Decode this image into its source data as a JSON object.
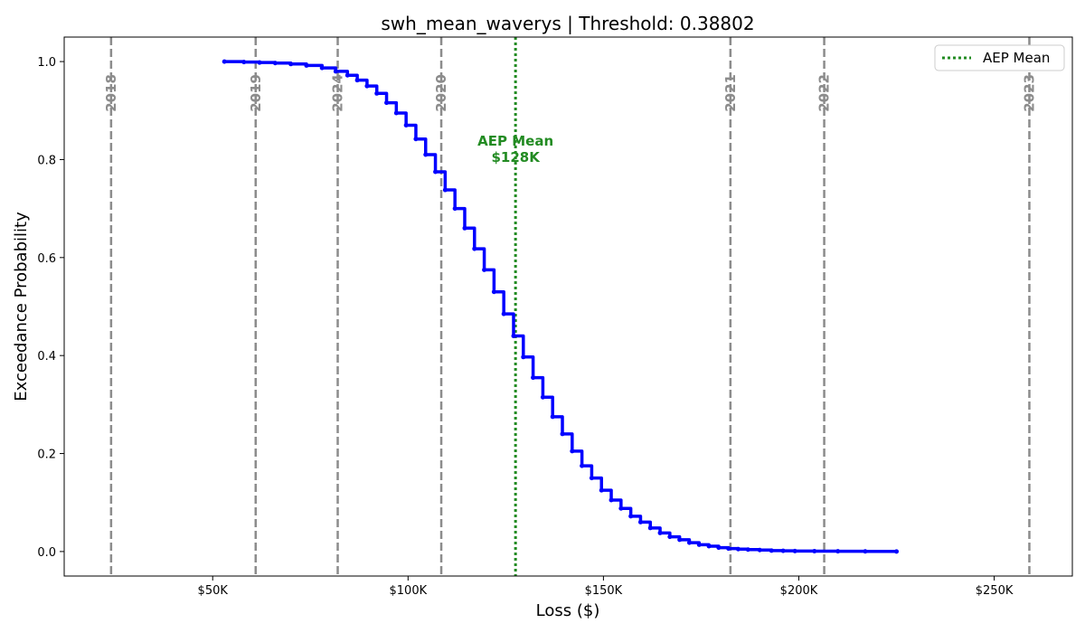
{
  "chart_data": {
    "type": "line",
    "title": "swh_mean_waverys | Threshold: 0.38802",
    "xlabel": "Loss ($)",
    "ylabel": "Exceedance Probability",
    "xlim": [
      12000,
      270000
    ],
    "ylim": [
      -0.05,
      1.05
    ],
    "x_ticks": [
      {
        "value": 50000,
        "label": "$50K"
      },
      {
        "value": 100000,
        "label": "$100K"
      },
      {
        "value": 150000,
        "label": "$150K"
      },
      {
        "value": 200000,
        "label": "$200K"
      },
      {
        "value": 250000,
        "label": "$250K"
      }
    ],
    "y_ticks": [
      {
        "value": 0.0,
        "label": "0.0"
      },
      {
        "value": 0.2,
        "label": "0.2"
      },
      {
        "value": 0.4,
        "label": "0.4"
      },
      {
        "value": 0.6,
        "label": "0.6"
      },
      {
        "value": 0.8,
        "label": "0.8"
      },
      {
        "value": 1.0,
        "label": "1.0"
      }
    ],
    "grid": false,
    "series": [
      {
        "color": "#0000ff",
        "style": "solid",
        "x": [
          53000,
          58000,
          62000,
          66000,
          70000,
          74000,
          78000,
          81500,
          84500,
          87000,
          89500,
          92000,
          94500,
          97000,
          99500,
          102000,
          104500,
          107000,
          109500,
          112000,
          114500,
          117000,
          119500,
          122000,
          124500,
          127000,
          129500,
          132000,
          134500,
          137000,
          139500,
          142000,
          144500,
          147000,
          149500,
          152000,
          154500,
          157000,
          159500,
          162000,
          164500,
          167000,
          169500,
          172000,
          174500,
          177000,
          179500,
          182000,
          184500,
          187000,
          190000,
          193000,
          196000,
          199000,
          204000,
          210000,
          217000,
          225000
        ],
        "y": [
          1.0,
          0.999,
          0.998,
          0.997,
          0.995,
          0.992,
          0.987,
          0.98,
          0.972,
          0.962,
          0.95,
          0.935,
          0.916,
          0.895,
          0.87,
          0.842,
          0.81,
          0.775,
          0.738,
          0.7,
          0.66,
          0.618,
          0.575,
          0.53,
          0.485,
          0.44,
          0.397,
          0.355,
          0.315,
          0.275,
          0.24,
          0.205,
          0.175,
          0.15,
          0.125,
          0.105,
          0.088,
          0.072,
          0.06,
          0.048,
          0.038,
          0.03,
          0.024,
          0.018,
          0.014,
          0.011,
          0.008,
          0.006,
          0.005,
          0.004,
          0.003,
          0.002,
          0.0015,
          0.001,
          0.0008,
          0.0005,
          0.0003,
          0.0001
        ]
      }
    ],
    "year_lines": [
      {
        "year": "2018",
        "x": 24000
      },
      {
        "year": "2019",
        "x": 61000
      },
      {
        "year": "2024",
        "x": 82000
      },
      {
        "year": "2020",
        "x": 108500
      },
      {
        "year": "2021",
        "x": 182500
      },
      {
        "year": "2022",
        "x": 206500
      },
      {
        "year": "2023",
        "x": 259000
      }
    ],
    "year_line_color": "#8c8c8c",
    "mean_line": {
      "x": 127500,
      "color": "#228b22",
      "label_line1": "AEP Mean",
      "label_line2": "$128K"
    },
    "legend": {
      "position": "top-right",
      "entries": [
        {
          "label": "AEP Mean",
          "color": "#228b22",
          "style": "dotted"
        }
      ]
    }
  }
}
